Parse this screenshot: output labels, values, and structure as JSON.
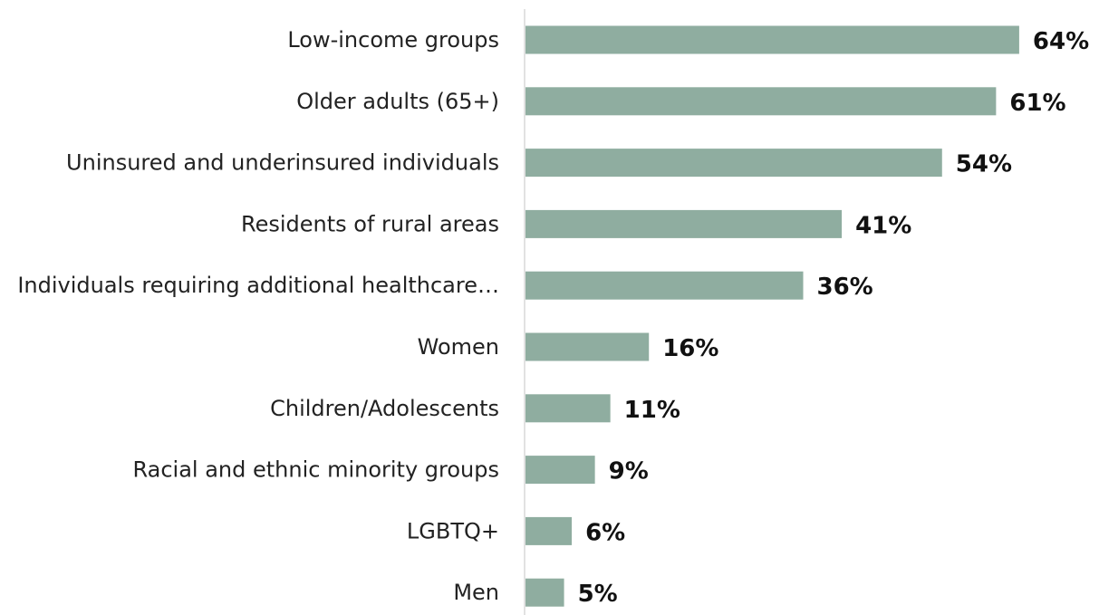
{
  "chart_data": {
    "type": "bar",
    "orientation": "horizontal",
    "title": "",
    "xlabel": "",
    "ylabel": "",
    "categories": [
      "Low-income groups",
      "Older adults (65+)",
      "Uninsured and underinsured individuals",
      "Residents of rural areas",
      "Individuals requiring additional healthcare…",
      "Women",
      "Children/Adolescents",
      "Racial and ethnic minority groups",
      "LGBTQ+",
      "Men"
    ],
    "values": [
      64,
      61,
      54,
      41,
      36,
      16,
      11,
      9,
      6,
      5
    ],
    "value_labels": [
      "64%",
      "61%",
      "54%",
      "41%",
      "36%",
      "16%",
      "11%",
      "9%",
      "6%",
      "5%"
    ],
    "xlim": [
      0,
      70
    ],
    "grid": false,
    "legend": "none",
    "bar_color": "#8fada0",
    "axis_color": "#d9d9d9"
  }
}
